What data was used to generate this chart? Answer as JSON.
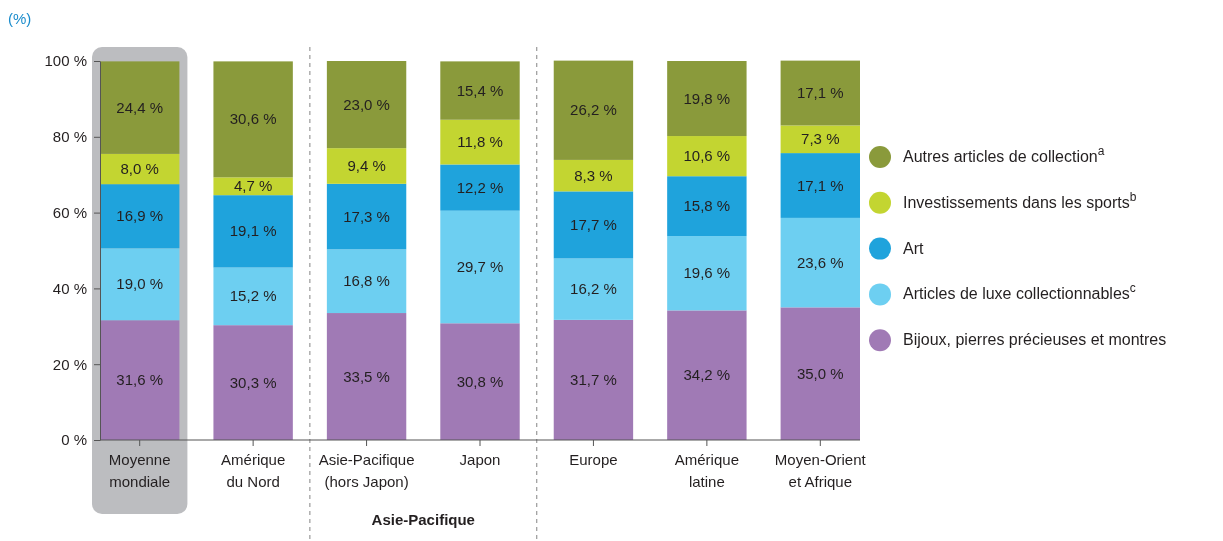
{
  "chart_data": {
    "type": "bar",
    "stacked": true,
    "ylabel": "(%)",
    "categories": [
      "Moyenne mondiale",
      "Amérique du Nord",
      "Asie-Pacifique (hors Japon)",
      "Japon",
      "Europe",
      "Amérique latine",
      "Moyen-Orient et Afrique"
    ],
    "series": [
      {
        "name": "Bijoux, pierres précieuses et montres",
        "color": "#a07ab5",
        "values": [
          31.6,
          30.3,
          33.5,
          30.8,
          31.7,
          34.2,
          35.0
        ],
        "value_labels": [
          "31,6 %",
          "30,3 %",
          "33,5 %",
          "30,8 %",
          "31,7 %",
          "34,2 %",
          "35,0 %"
        ]
      },
      {
        "name": "Articles de luxe collectionnables$^{c}$",
        "color": "#6dcff1",
        "values": [
          19.0,
          15.2,
          16.8,
          29.7,
          16.2,
          19.6,
          23.6
        ],
        "value_labels": [
          "19,0 %",
          "15,2 %",
          "16,8 %",
          "29,7 %",
          "16,2 %",
          "19,6 %",
          "23,6 %"
        ]
      },
      {
        "name": "Art",
        "color": "#1fa3dc",
        "values": [
          16.9,
          19.1,
          17.3,
          12.2,
          17.7,
          15.8,
          17.1
        ],
        "value_labels": [
          "16,9 %",
          "19,1 %",
          "17,3 %",
          "12,2 %",
          "17,7 %",
          "15,8 %",
          "17,1 %"
        ]
      },
      {
        "name": "Investissements dans les sports$^{b}$",
        "color": "#c3d531",
        "values": [
          8.0,
          4.7,
          9.4,
          11.8,
          8.3,
          10.6,
          7.3
        ],
        "value_labels": [
          "8,0 %",
          "4,7 %",
          "9,4 %",
          "11,8 %",
          "8,3 %",
          "10,6 %",
          "7,3 %"
        ]
      },
      {
        "name": "Autres articles de collection$^{a}$",
        "color": "#8a9a3b",
        "values": [
          24.4,
          30.6,
          23.0,
          15.4,
          26.2,
          19.8,
          17.1
        ],
        "value_labels": [
          "24,4 %",
          "30,6 %",
          "23,0 %",
          "15,4 %",
          "26,2 %",
          "19,8 %",
          "17,1 %"
        ]
      }
    ],
    "ylim": [
      0,
      100
    ],
    "yticks": [
      {
        "value": 0,
        "label": "0 %"
      },
      {
        "value": 20,
        "label": "20 %"
      },
      {
        "value": 40,
        "label": "40 %"
      },
      {
        "value": 60,
        "label": "60 %"
      },
      {
        "value": 80,
        "label": "80 %"
      },
      {
        "value": 100,
        "label": "100 %"
      }
    ],
    "bands": [
      {
        "axis": "x",
        "from": "Moyenne mondiale",
        "to": "Moyenne mondiale",
        "color": "#bcbdc0"
      }
    ],
    "annotations": [
      "Asie-Pacifique"
    ],
    "grid": false,
    "legend": "right"
  }
}
